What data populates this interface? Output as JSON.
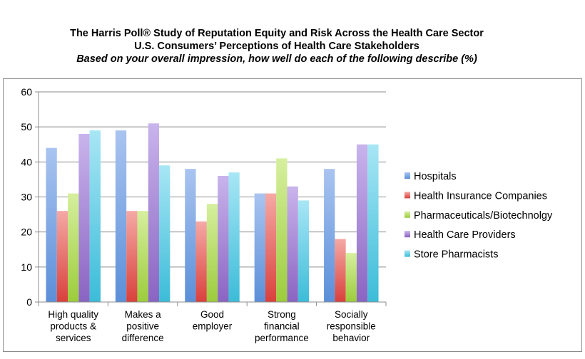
{
  "header": {
    "title": "The Harris Poll® Study of Reputation Equity and Risk Across the Health Care Sector",
    "subtitle": "U.S. Consumers’ Perceptions of Health Care Stakeholders",
    "question": "Based on your overall impression, how well do each of the following describe (%)"
  },
  "chart_data": {
    "type": "bar",
    "title": "The Harris Poll® Study of Reputation Equity and Risk Across the Health Care Sector",
    "xlabel": "",
    "ylabel": "",
    "ylim": [
      0,
      60
    ],
    "yticks": [
      0,
      10,
      20,
      30,
      40,
      50,
      60
    ],
    "grid": true,
    "legend_position": "right",
    "categories": [
      [
        "High quality",
        "products &",
        "services"
      ],
      [
        "Makes a",
        "positive",
        "difference"
      ],
      [
        "Good",
        "employer"
      ],
      [
        "Strong",
        "financial",
        "performance"
      ],
      [
        "Socially",
        "responsible",
        "behavior"
      ]
    ],
    "series": [
      {
        "name": "Hospitals",
        "color": "#5b8fd8",
        "light": "#a9c4f0",
        "values": [
          44,
          49,
          38,
          31,
          38
        ]
      },
      {
        "name": "Health Insurance Companies",
        "color": "#d9403c",
        "light": "#f5a9a5",
        "values": [
          26,
          26,
          23,
          31,
          18
        ]
      },
      {
        "name": "Pharmaceuticals/Biotechnolgy",
        "color": "#9ccc3c",
        "light": "#d6ef9e",
        "values": [
          31,
          26,
          28,
          41,
          14
        ]
      },
      {
        "name": "Health Care Providers",
        "color": "#8a64c2",
        "light": "#c9b4ec",
        "values": [
          48,
          51,
          36,
          33,
          45
        ]
      },
      {
        "name": "Store Pharmacists",
        "color": "#3cbcd8",
        "light": "#a8e6f5",
        "values": [
          49,
          39,
          37,
          29,
          45
        ]
      }
    ]
  }
}
